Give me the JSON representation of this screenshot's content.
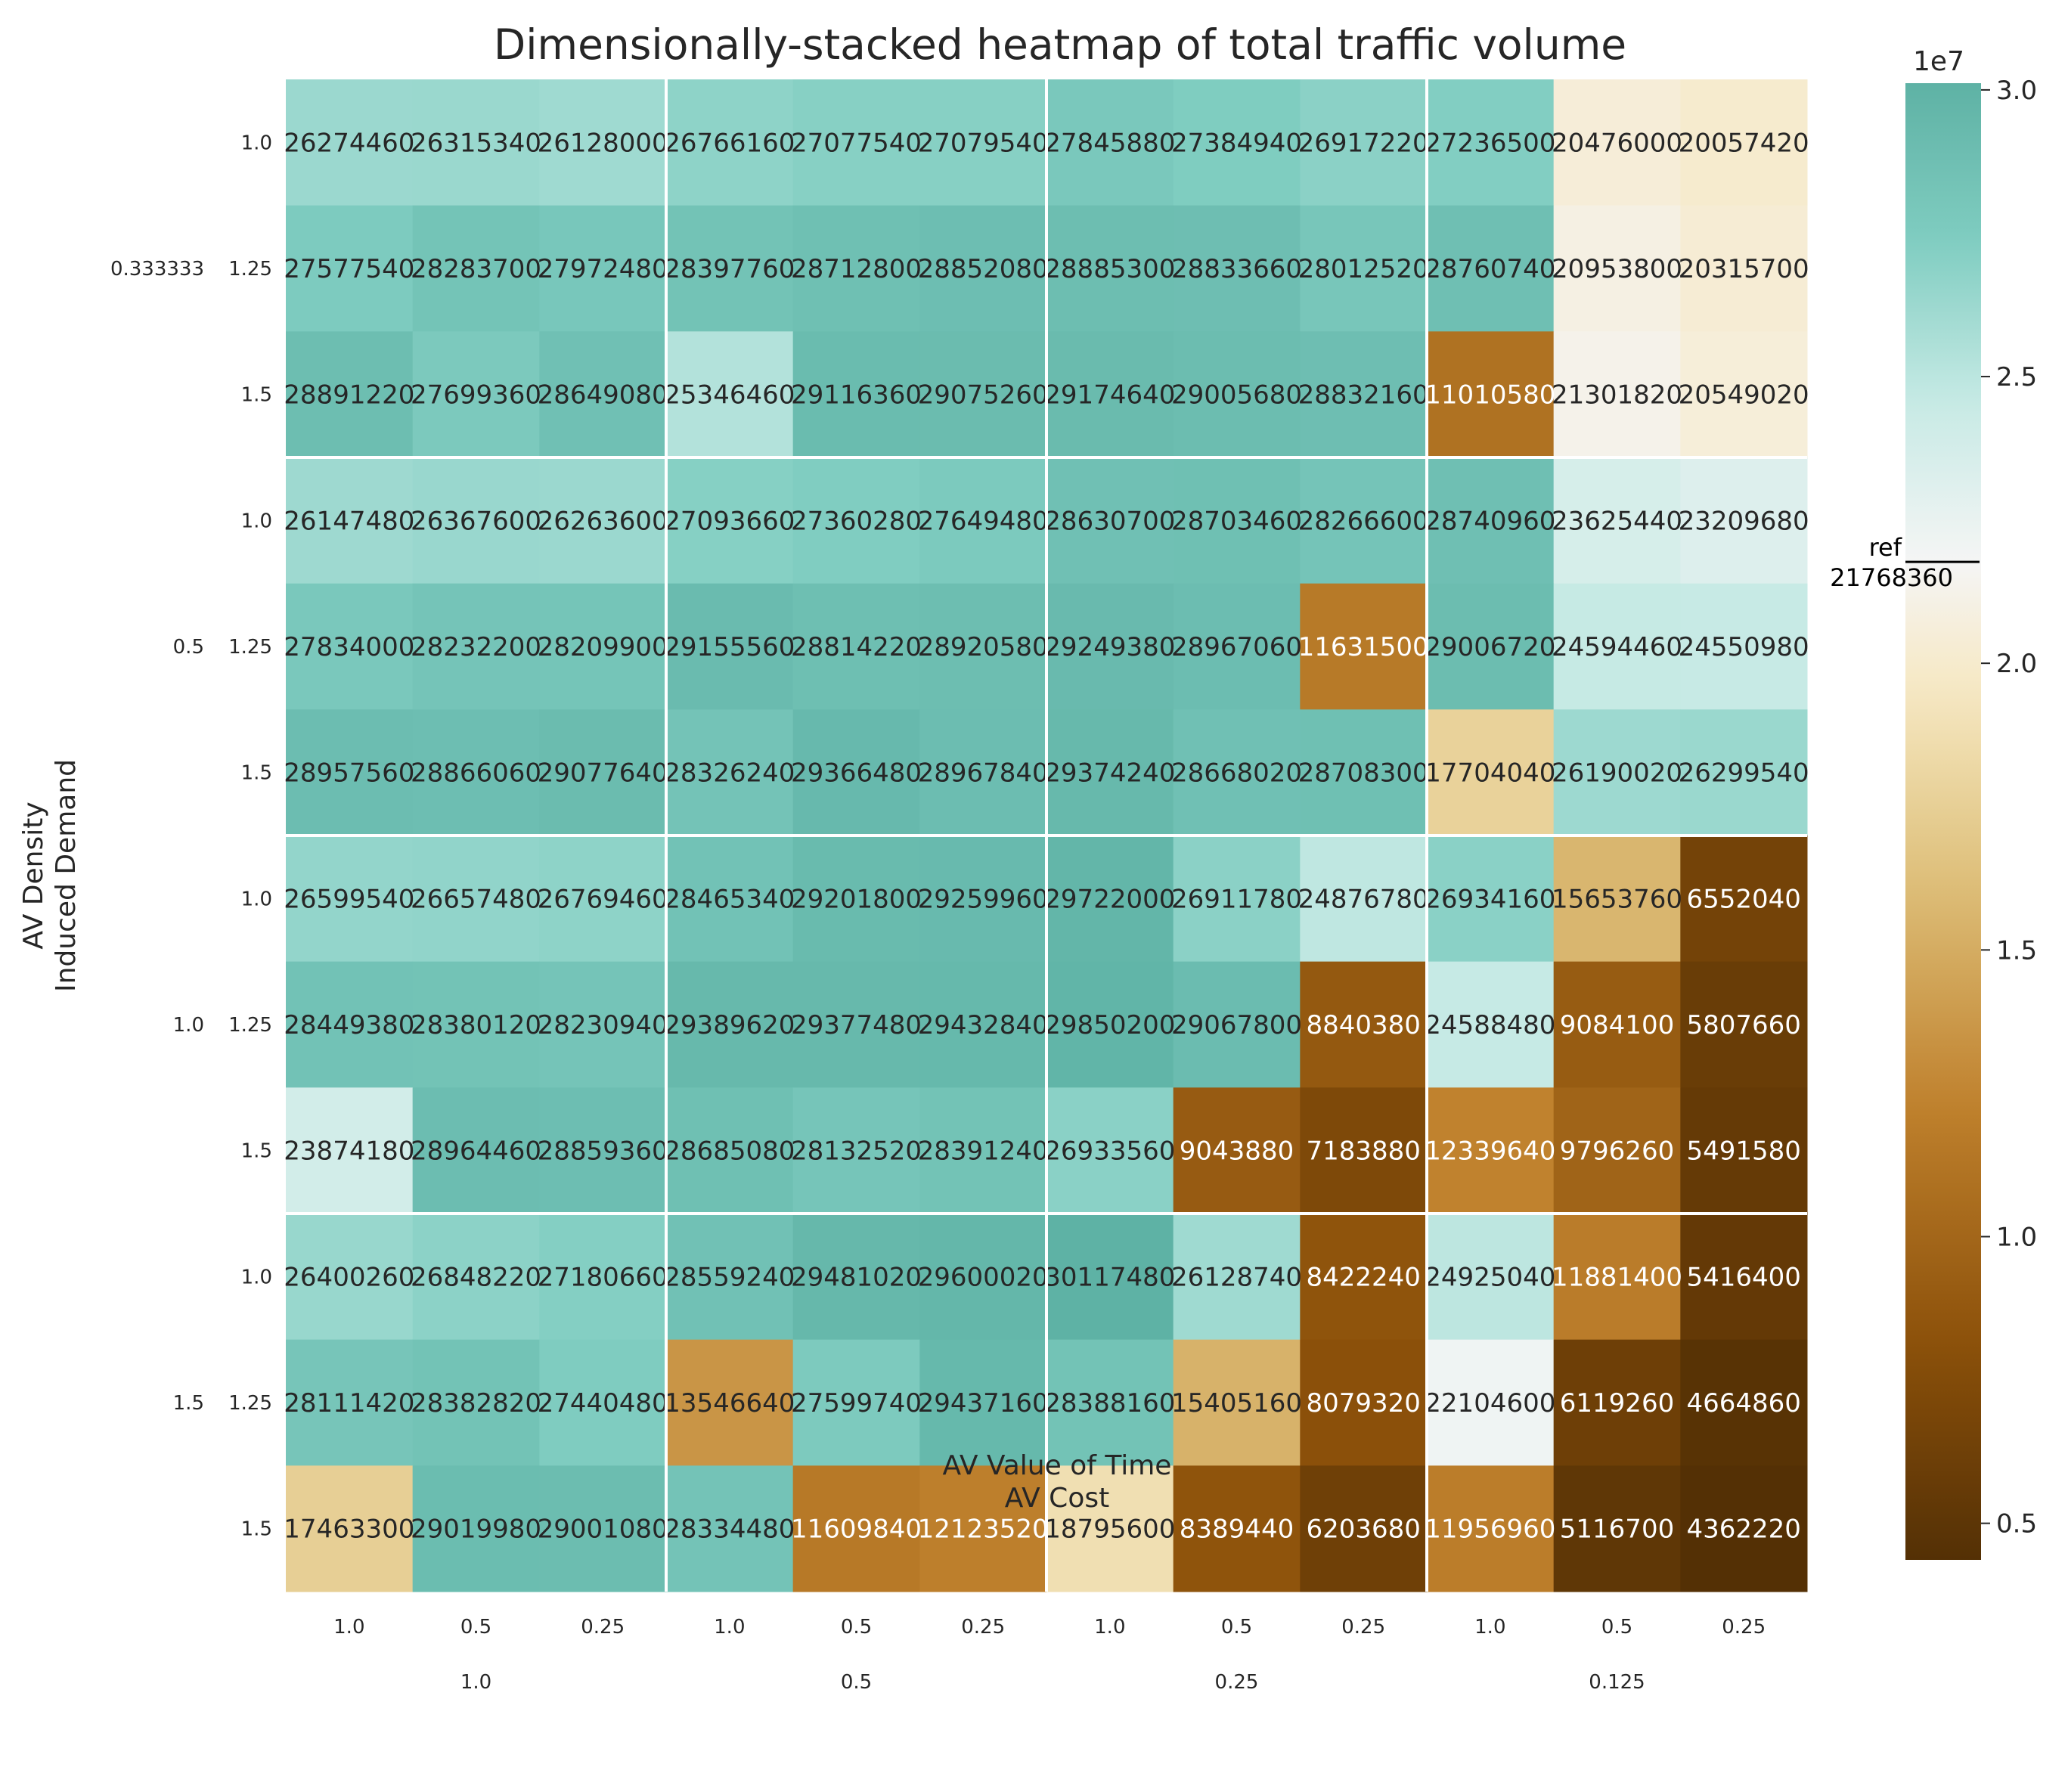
{
  "chart_data": {
    "type": "heatmap",
    "title": "Dimensionally-stacked heatmap of total traffic volume",
    "xlabel_outer": "AV Cost",
    "xlabel_inner": "AV Value of Time",
    "ylabel_outer": "AV Density",
    "ylabel_inner": "Induced Demand",
    "x_outer": [
      "1.0",
      "0.5",
      "0.25",
      "0.125"
    ],
    "x_inner": [
      "1.0",
      "0.5",
      "0.25"
    ],
    "y_outer": [
      "0.333333",
      "0.5",
      "1.0",
      "1.5"
    ],
    "y_inner": [
      "1.0",
      "1.25",
      "1.5"
    ],
    "values": [
      [
        26274460,
        26315340,
        26128000,
        26766160,
        27077540,
        27079540,
        27845880,
        27384940,
        26917220,
        27236500,
        20476000,
        20057420
      ],
      [
        27577540,
        28283700,
        27972480,
        28397760,
        28712800,
        28852080,
        28885300,
        28833660,
        28012520,
        28760740,
        20953800,
        20315700
      ],
      [
        28891220,
        27699360,
        28649080,
        25346460,
        29116360,
        29075260,
        29174640,
        29005680,
        28832160,
        11010580,
        21301820,
        20549020
      ],
      [
        26147480,
        26367600,
        26263600,
        27093660,
        27360280,
        27649480,
        28630700,
        28703460,
        28266600,
        28740960,
        23625440,
        23209680
      ],
      [
        27834000,
        28232200,
        28209900,
        29155560,
        28814220,
        28920580,
        29249380,
        28967060,
        11631500,
        29006720,
        24594460,
        24550980
      ],
      [
        28957560,
        28866060,
        29077640,
        28326240,
        29366480,
        28967840,
        29374240,
        28668020,
        28708300,
        17704040,
        26190020,
        26299540
      ],
      [
        26599540,
        26657480,
        26769460,
        28465340,
        29201800,
        29259960,
        29722000,
        26911780,
        24876780,
        26934160,
        15653760,
        6552040
      ],
      [
        28449380,
        28380120,
        28230940,
        29389620,
        29377480,
        29432840,
        29850200,
        29067800,
        8840380,
        24588480,
        9084100,
        5807660
      ],
      [
        23874180,
        28964460,
        28859360,
        28685080,
        28132520,
        28391240,
        26933560,
        9043880,
        7183880,
        12339640,
        9796260,
        5491580
      ],
      [
        26400260,
        26848220,
        27180660,
        28559240,
        29481020,
        29600020,
        30117480,
        26128740,
        8422240,
        24925040,
        11881400,
        5416400
      ],
      [
        28111420,
        28382820,
        27440480,
        13546640,
        27599740,
        29437160,
        28388160,
        15405160,
        8079320,
        22104600,
        6119260,
        4664860
      ],
      [
        17463300,
        29019980,
        29001080,
        28334480,
        11609840,
        12123520,
        18795600,
        8389440,
        6203680,
        11956960,
        5116700,
        4362220
      ]
    ],
    "value_range": [
      4362220,
      30117480
    ],
    "colormap": "BrBG",
    "colorbar": {
      "ticks": [
        0.5,
        1.0,
        1.5,
        2.0,
        2.5,
        3.0
      ],
      "tick_labels": [
        "0.5",
        "1.0",
        "1.5",
        "2.0",
        "2.5",
        "3.0"
      ],
      "exponent_label": "1e7",
      "reference_label": "ref",
      "reference_value": 21768360,
      "reference_text": "21768360"
    }
  }
}
